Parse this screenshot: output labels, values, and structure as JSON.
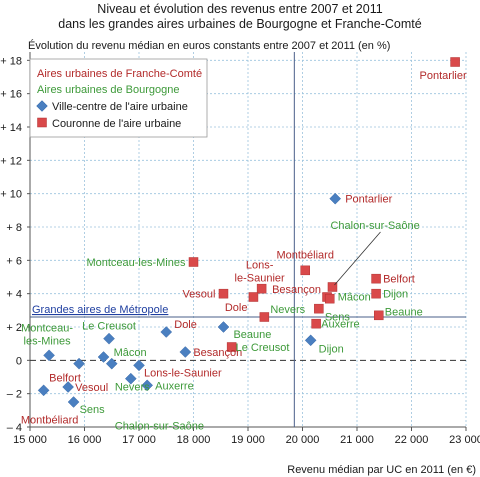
{
  "chart_data": {
    "type": "scatter",
    "title": "Niveau et évolution des revenus entre 2007 et 2011",
    "subtitle": "dans les grandes aires urbaines de Bourgogne et Franche-Comté",
    "ylabel": "Évolution du revenu médian en euros constants entre 2007 et 2011 (en %)",
    "xlabel": "Revenu médian par UC en 2011 (en €)",
    "xlim": [
      15000,
      23000
    ],
    "ylim": [
      -4,
      18.5
    ],
    "x_ticks": [
      15000,
      16000,
      17000,
      18000,
      19000,
      20000,
      21000,
      22000,
      23000
    ],
    "x_tick_labels": [
      "15 000",
      "16 000",
      "17 000",
      "18 000",
      "19 000",
      "20 000",
      "21 000",
      "22 000",
      "23 000"
    ],
    "y_ticks": [
      -4,
      -2,
      0,
      2,
      4,
      6,
      8,
      10,
      12,
      14,
      16,
      18
    ],
    "y_tick_labels": [
      "– 4",
      "– 2",
      "0",
      "+ 2",
      "+ 4",
      "+ 6",
      "+ 8",
      "+ 10",
      "+ 12",
      "+ 14",
      "+ 16",
      "+ 18"
    ],
    "grid": true,
    "reference": {
      "label": "Grandes aires de Métropole",
      "x": 19850,
      "y": 2.6,
      "color": "#1f3fa0"
    },
    "zero_line": true,
    "legend": {
      "position": "top-left",
      "entries": [
        {
          "label": "Aires urbaines de Franche-Comté",
          "color": "#b22a2a"
        },
        {
          "label": "Aires urbaines de Bourgogne",
          "color": "#3e9a3a"
        },
        {
          "label": "Ville-centre de l'aire urbaine",
          "marker": "diamond",
          "color": "#4a7fc0"
        },
        {
          "label": "Couronne de l'aire urbaine",
          "marker": "square",
          "color": "#d9494a"
        }
      ]
    },
    "colors": {
      "franche_comte": "#b22a2a",
      "bourgogne": "#3e9a3a",
      "ville_centre": "#4a7fc0",
      "couronne": "#d9494a",
      "grid": "#9cc3dd",
      "reference": "#1f3fa0"
    },
    "series": [
      {
        "name": "Ville-centre de l'aire urbaine",
        "marker": "diamond",
        "points": [
          {
            "label": "Pontarlier",
            "x": 20600,
            "y": 9.7,
            "region": "franche_comte"
          },
          {
            "label": "Dole",
            "x": 17500,
            "y": 1.7,
            "region": "franche_comte"
          },
          {
            "label": "Beaune",
            "x": 18550,
            "y": 2.0,
            "region": "bourgogne"
          },
          {
            "label": "Dijon",
            "x": 20150,
            "y": 1.2,
            "region": "bourgogne"
          },
          {
            "label": "Montceau-les-Mines",
            "x": 15350,
            "y": 0.3,
            "region": "bourgogne"
          },
          {
            "label": "Le Creusot",
            "x": 16450,
            "y": 1.3,
            "region": "bourgogne"
          },
          {
            "label": "Belfort",
            "x": 15900,
            "y": -0.2,
            "region": "franche_comte"
          },
          {
            "label": "Mâcon",
            "x": 16350,
            "y": 0.2,
            "region": "bourgogne"
          },
          {
            "label": "Besançon",
            "x": 17850,
            "y": 0.5,
            "region": "franche_comte"
          },
          {
            "label": "Lons-le-Saunier",
            "x": 17000,
            "y": -0.3,
            "region": "franche_comte"
          },
          {
            "label": "Nevers",
            "x": 16850,
            "y": -1.1,
            "region": "bourgogne"
          },
          {
            "label": "Vesoul",
            "x": 15700,
            "y": -1.6,
            "region": "franche_comte"
          },
          {
            "label": "Auxerre",
            "x": 17150,
            "y": -1.5,
            "region": "bourgogne"
          },
          {
            "label": "Sens",
            "x": 15800,
            "y": -2.5,
            "region": "bourgogne"
          },
          {
            "label": "Chalon-sur-Saône",
            "x": 16500,
            "y": -0.2,
            "region": "bourgogne"
          },
          {
            "label": "Montbéliard",
            "x": 15250,
            "y": -1.8,
            "region": "franche_comte"
          }
        ]
      },
      {
        "name": "Couronne de l'aire urbaine",
        "marker": "square",
        "points": [
          {
            "label": "Pontarlier",
            "x": 22800,
            "y": 17.9,
            "region": "franche_comte"
          },
          {
            "label": "Montceau-les-Mines",
            "x": 18000,
            "y": 5.9,
            "region": "bourgogne"
          },
          {
            "label": "Montbéliard",
            "x": 20050,
            "y": 5.4,
            "region": "franche_comte"
          },
          {
            "label": "Lons-le-Saunier",
            "x": 19250,
            "y": 4.3,
            "region": "franche_comte"
          },
          {
            "label": "Vesoul",
            "x": 18550,
            "y": 4.0,
            "region": "franche_comte"
          },
          {
            "label": "Dole",
            "x": 19100,
            "y": 3.8,
            "region": "franche_comte"
          },
          {
            "label": "Besançon",
            "x": 20450,
            "y": 3.8,
            "region": "franche_comte"
          },
          {
            "label": "Belfort",
            "x": 21350,
            "y": 4.9,
            "region": "franche_comte"
          },
          {
            "label": "Chalon-sur-Saône",
            "x": 20550,
            "y": 4.4,
            "region": "bourgogne"
          },
          {
            "label": "Mâcon",
            "x": 20500,
            "y": 3.7,
            "region": "bourgogne"
          },
          {
            "label": "Dijon",
            "x": 21350,
            "y": 4.0,
            "region": "bourgogne"
          },
          {
            "label": "Sens",
            "x": 20300,
            "y": 3.1,
            "region": "bourgogne"
          },
          {
            "label": "Nevers",
            "x": 19300,
            "y": 2.6,
            "region": "bourgogne"
          },
          {
            "label": "Beaune",
            "x": 21400,
            "y": 2.7,
            "region": "bourgogne"
          },
          {
            "label": "Auxerre",
            "x": 20250,
            "y": 2.2,
            "region": "bourgogne"
          },
          {
            "label": "Le Creusot",
            "x": 18700,
            "y": 0.8,
            "region": "bourgogne"
          }
        ]
      }
    ]
  }
}
